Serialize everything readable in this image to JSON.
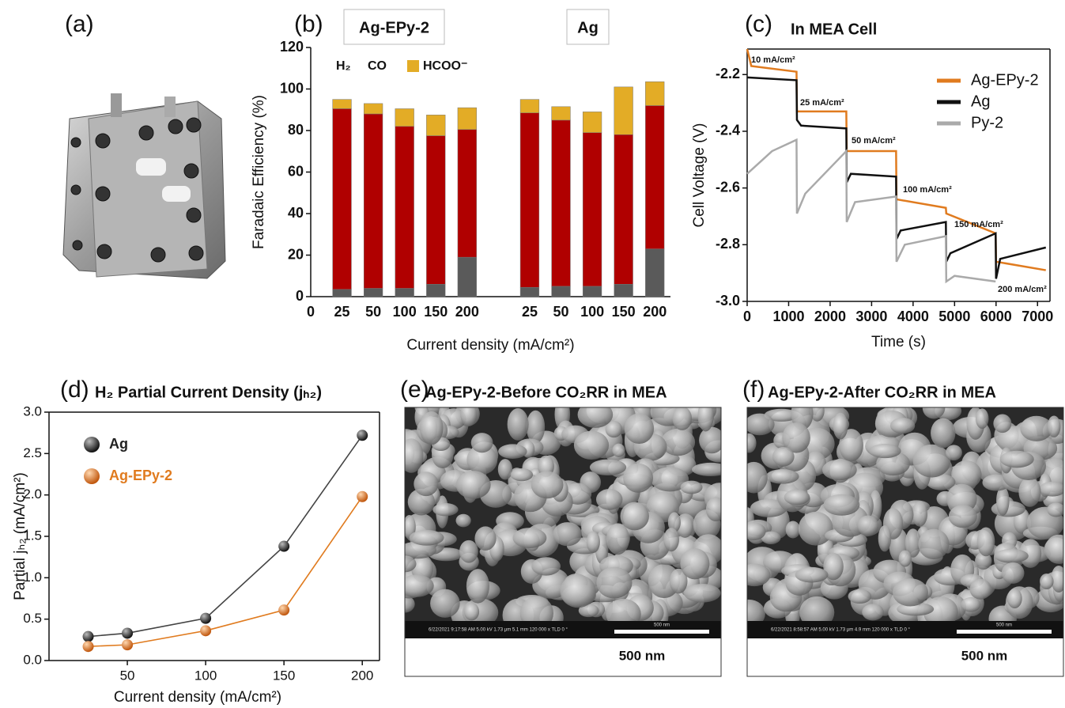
{
  "photo_panel": {
    "panel_label": "(a)"
  },
  "chart_data": [
    {
      "type": "stacked_bar",
      "panel_label": "(b)",
      "group_labels": [
        "Ag-EPy-2",
        "Ag"
      ],
      "x_origin_label": "0",
      "categories": [
        "25",
        "50",
        "100",
        "150",
        "200",
        null,
        "25",
        "50",
        "100",
        "150",
        "200"
      ],
      "series": [
        {
          "name": "H₂",
          "color": "#5a5a5a",
          "values": [
            3.5,
            4,
            4,
            6,
            19,
            null,
            4.5,
            5,
            5,
            6,
            23
          ]
        },
        {
          "name": "CO",
          "color": "#b00000",
          "values": [
            87,
            84,
            78,
            71.5,
            61.5,
            null,
            84,
            80,
            74,
            72,
            69
          ]
        },
        {
          "name": "HCOO⁻",
          "color": "#e3ac26",
          "values": [
            4.5,
            5,
            8.5,
            10,
            10.5,
            null,
            6.5,
            6.5,
            10,
            23,
            11.5
          ]
        }
      ],
      "ylim": [
        0,
        120
      ],
      "yticks": [
        0,
        20,
        40,
        60,
        80,
        100,
        120
      ],
      "ylabel": "Faradaic Efficiency (%)",
      "xlabel": "Current density (mA/cm²)",
      "legend": "upper left"
    },
    {
      "type": "line",
      "panel_label": "(c)",
      "title": "In MEA Cell",
      "series": [
        {
          "name": "Ag-EPy-2",
          "color": "#e07b1f",
          "x": [
            0,
            100,
            1190,
            1200,
            2390,
            2400,
            3590,
            3600,
            4790,
            4800,
            5990,
            6000,
            7200
          ],
          "values": [
            -2.11,
            -2.17,
            -2.19,
            -2.33,
            -2.33,
            -2.47,
            -2.47,
            -2.64,
            -2.67,
            -2.69,
            -2.76,
            -2.86,
            -2.89
          ]
        },
        {
          "name": "Ag",
          "color": "#111111",
          "x": [
            0,
            1190,
            1200,
            1300,
            2390,
            2400,
            2500,
            3590,
            3600,
            3700,
            4790,
            4800,
            4900,
            5990,
            6000,
            6100,
            7200
          ],
          "values": [
            -2.21,
            -2.22,
            -2.36,
            -2.38,
            -2.39,
            -2.58,
            -2.55,
            -2.56,
            -2.78,
            -2.75,
            -2.72,
            -2.86,
            -2.83,
            -2.76,
            -2.92,
            -2.85,
            -2.81
          ]
        },
        {
          "name": "Py-2",
          "color": "#aaaaaa",
          "x": [
            0,
            600,
            1190,
            1200,
            1400,
            2390,
            2400,
            2600,
            3590,
            3600,
            3800,
            4790,
            4800,
            5000,
            5990
          ],
          "values": [
            -2.55,
            -2.47,
            -2.43,
            -2.69,
            -2.62,
            -2.47,
            -2.72,
            -2.65,
            -2.63,
            -2.86,
            -2.8,
            -2.77,
            -2.93,
            -2.91,
            -2.93
          ]
        }
      ],
      "annotations": [
        "10 mA/cm²",
        "25 mA/cm²",
        "50 mA/cm²",
        "100 mA/cm²",
        "150 mA/cm²",
        "200 mA/cm²"
      ],
      "xlim": [
        0,
        7300
      ],
      "xticks": [
        0,
        1000,
        2000,
        3000,
        4000,
        5000,
        6000,
        7000
      ],
      "ylim": [
        -3,
        -2.11
      ],
      "yticks": [
        {
          "value": -3,
          "label": "-3.0"
        },
        -2.8,
        -2.6,
        -2.4,
        -2.2
      ],
      "ylabel": "Cell Voltage (V)",
      "xlabel": "Time (s)",
      "legend": "upper right"
    },
    {
      "type": "scatter_line",
      "panel_label": "(d)",
      "title": "H₂ Partial Current Density (jₕ₂)",
      "x": [
        25,
        50,
        100,
        150,
        200
      ],
      "series": [
        {
          "name": "Ag",
          "color": "#222222",
          "values": [
            0.29,
            0.33,
            0.51,
            1.38,
            2.72
          ]
        },
        {
          "name": "Ag-EPy-2",
          "color": "#e07b1f",
          "values": [
            0.17,
            0.19,
            0.36,
            0.61,
            1.98
          ]
        }
      ],
      "xlim": [
        0,
        211
      ],
      "xticks": [
        50,
        100,
        150,
        200
      ],
      "ylim": [
        0,
        3
      ],
      "yticks": [
        {
          "value": 0,
          "label": "0.0"
        },
        0.5,
        {
          "value": 1,
          "label": "1.0"
        },
        1.5,
        {
          "value": 2,
          "label": "2.0"
        },
        2.5,
        {
          "value": 3,
          "label": "3.0"
        }
      ],
      "ylabel": "Partial jₕ₂ (mA/cm²)",
      "xlabel": "Current density (mA/cm²)",
      "legend": "upper left"
    }
  ],
  "sem_panels": [
    {
      "panel_label": "(e)",
      "title": "Ag-EPy-2-Before CO₂RR in MEA",
      "info": "6/22/2021  9:17:58 AM  5.00 kV  1.73 μm  5.1 mm  120 000 x  TLD  0 °",
      "bar_label": "500 nm",
      "scale_label": "500 nm"
    },
    {
      "panel_label": "(f)",
      "title": "Ag-EPy-2-After CO₂RR in MEA",
      "info": "6/22/2021  8:58:57 AM  5.00 kV  1.73 μm  4.9 mm  120 000 x  TLD  0 °",
      "bar_label": "500 nm",
      "scale_label": "500 nm"
    }
  ]
}
